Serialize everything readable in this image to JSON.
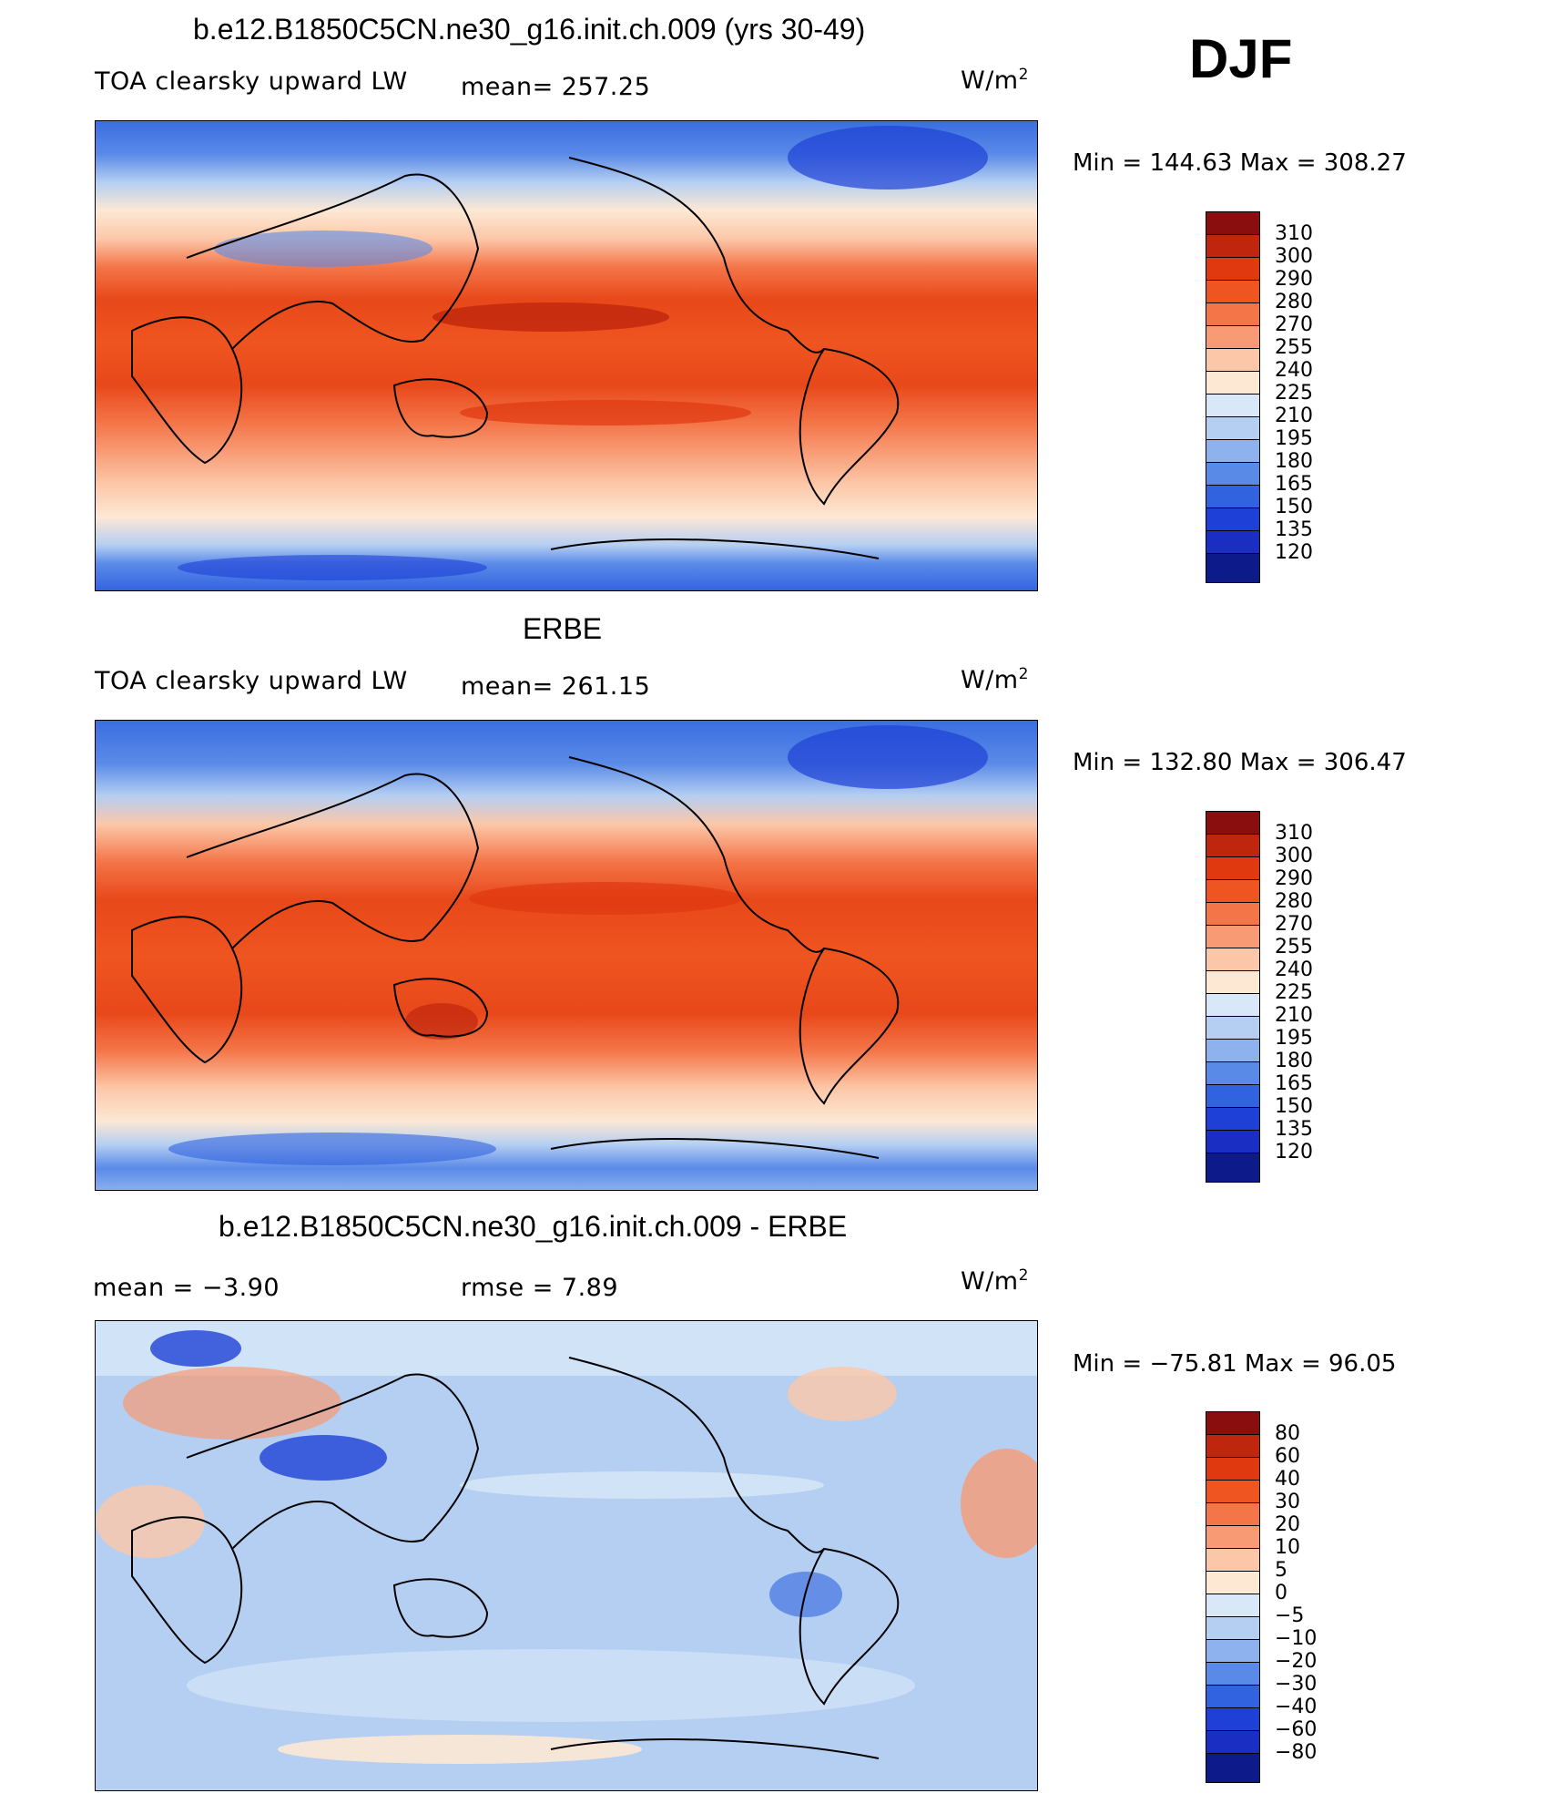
{
  "season": "DJF",
  "panels": [
    {
      "title": "b.e12.B1850C5CN.ne30_g16.init.ch.009 (yrs 30-49)",
      "variable": "TOA clearsky upward LW",
      "stat_text": "mean=  257.25",
      "units": "W/m",
      "units_sup": "2",
      "minmax": "Min  =  144.63  Max  =  308.27",
      "colorbar_labels": [
        "310",
        "300",
        "290",
        "280",
        "270",
        "255",
        "240",
        "225",
        "210",
        "195",
        "180",
        "165",
        "150",
        "135",
        "120"
      ],
      "colorbar_colors": [
        "#8b0e0e",
        "#c0260d",
        "#e0380f",
        "#ef5520",
        "#f47548",
        "#f89a74",
        "#fcc7a8",
        "#fde8d4",
        "#d8e8f8",
        "#b5cff2",
        "#8eb2ee",
        "#5a8ae8",
        "#3162e0",
        "#1e40d6",
        "#1a2ec4",
        "#0c1a8a"
      ]
    },
    {
      "title": "ERBE",
      "variable": "TOA clearsky upward LW",
      "stat_text": "mean=  261.15",
      "units": "W/m",
      "units_sup": "2",
      "minmax": "Min  =  132.80  Max  =  306.47",
      "colorbar_labels": [
        "310",
        "300",
        "290",
        "280",
        "270",
        "255",
        "240",
        "225",
        "210",
        "195",
        "180",
        "165",
        "150",
        "135",
        "120"
      ],
      "colorbar_colors": [
        "#8b0e0e",
        "#c0260d",
        "#e0380f",
        "#ef5520",
        "#f47548",
        "#f89a74",
        "#fcc7a8",
        "#fde8d4",
        "#d8e8f8",
        "#b5cff2",
        "#8eb2ee",
        "#5a8ae8",
        "#3162e0",
        "#1e40d6",
        "#1a2ec4",
        "#0c1a8a"
      ]
    },
    {
      "title": "b.e12.B1850C5CN.ne30_g16.init.ch.009 - ERBE",
      "stat_text": "mean =    −3.90",
      "rmse_text": "rmse =     7.89",
      "units": "W/m",
      "units_sup": "2",
      "minmax": "Min  =  −75.81  Max  =    96.05",
      "colorbar_labels": [
        "80",
        "60",
        "40",
        "30",
        "20",
        "10",
        "5",
        "0",
        "−5",
        "−10",
        "−20",
        "−30",
        "−40",
        "−60",
        "−80"
      ],
      "colorbar_colors": [
        "#8b0e0e",
        "#c0260d",
        "#e0380f",
        "#ef5520",
        "#f47548",
        "#f89a74",
        "#fcc7a8",
        "#fde8d4",
        "#d8e8f8",
        "#b5cff2",
        "#8eb2ee",
        "#5a8ae8",
        "#3162e0",
        "#1e40d6",
        "#1a2ec4",
        "#0c1a8a"
      ]
    }
  ]
}
